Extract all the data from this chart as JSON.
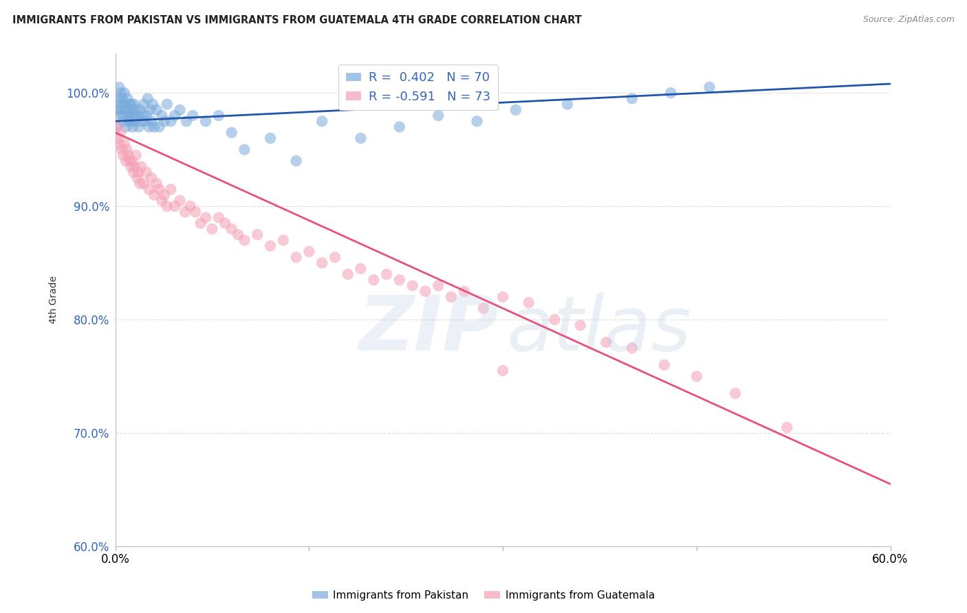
{
  "title": "IMMIGRANTS FROM PAKISTAN VS IMMIGRANTS FROM GUATEMALA 4TH GRADE CORRELATION CHART",
  "source": "Source: ZipAtlas.com",
  "ylabel": "4th Grade",
  "xlim": [
    0.0,
    60.0
  ],
  "ylim": [
    60.0,
    103.5
  ],
  "yticks": [
    60.0,
    70.0,
    80.0,
    90.0,
    100.0
  ],
  "ytick_labels": [
    "60.0%",
    "70.0%",
    "80.0%",
    "90.0%",
    "100.0%"
  ],
  "pakistan_color": "#7aabdc",
  "guatemala_color": "#f4a0b5",
  "pakistan_line_color": "#2255aa",
  "guatemala_line_color": "#e8507a",
  "background_color": "#ffffff",
  "grid_color": "#cccccc",
  "pakistan_scatter_x": [
    0.1,
    0.15,
    0.2,
    0.25,
    0.3,
    0.35,
    0.4,
    0.45,
    0.5,
    0.55,
    0.6,
    0.65,
    0.7,
    0.75,
    0.8,
    0.85,
    0.9,
    0.95,
    1.0,
    1.05,
    1.1,
    1.15,
    1.2,
    1.25,
    1.3,
    1.35,
    1.4,
    1.45,
    1.5,
    1.6,
    1.7,
    1.8,
    1.9,
    2.0,
    2.1,
    2.2,
    2.3,
    2.4,
    2.5,
    2.6,
    2.7,
    2.8,
    2.9,
    3.0,
    3.2,
    3.4,
    3.6,
    3.8,
    4.0,
    4.3,
    4.6,
    5.0,
    5.5,
    6.0,
    7.0,
    8.0,
    9.0,
    10.0,
    12.0,
    14.0,
    16.0,
    19.0,
    22.0,
    25.0,
    28.0,
    31.0,
    35.0,
    40.0,
    43.0,
    46.0
  ],
  "pakistan_scatter_y": [
    98.5,
    97.0,
    99.5,
    98.0,
    100.5,
    99.0,
    98.5,
    100.0,
    99.5,
    98.0,
    99.0,
    97.5,
    100.0,
    98.5,
    99.0,
    97.0,
    98.5,
    99.5,
    98.0,
    97.5,
    99.0,
    98.0,
    97.5,
    99.0,
    98.5,
    97.0,
    98.0,
    99.0,
    97.5,
    98.5,
    98.0,
    97.0,
    98.5,
    97.5,
    98.0,
    99.0,
    97.5,
    98.0,
    99.5,
    97.0,
    98.5,
    97.5,
    99.0,
    97.0,
    98.5,
    97.0,
    98.0,
    97.5,
    99.0,
    97.5,
    98.0,
    98.5,
    97.5,
    98.0,
    97.5,
    98.0,
    96.5,
    95.0,
    96.0,
    94.0,
    97.5,
    96.0,
    97.0,
    98.0,
    97.5,
    98.5,
    99.0,
    99.5,
    100.0,
    100.5
  ],
  "guatemala_scatter_x": [
    0.1,
    0.2,
    0.3,
    0.4,
    0.5,
    0.6,
    0.7,
    0.8,
    0.9,
    1.0,
    1.1,
    1.2,
    1.3,
    1.4,
    1.5,
    1.6,
    1.7,
    1.8,
    1.9,
    2.0,
    2.2,
    2.4,
    2.6,
    2.8,
    3.0,
    3.2,
    3.4,
    3.6,
    3.8,
    4.0,
    4.3,
    4.6,
    5.0,
    5.4,
    5.8,
    6.2,
    6.6,
    7.0,
    7.5,
    8.0,
    8.5,
    9.0,
    9.5,
    10.0,
    11.0,
    12.0,
    13.0,
    14.0,
    15.0,
    16.0,
    17.0,
    18.0,
    19.0,
    20.0,
    21.0,
    22.0,
    23.0,
    24.0,
    25.0,
    26.0,
    27.0,
    28.5,
    30.0,
    32.0,
    34.0,
    36.0,
    38.0,
    40.0,
    42.5,
    45.0,
    48.0,
    52.0,
    30.0
  ],
  "guatemala_scatter_y": [
    97.0,
    96.0,
    95.5,
    96.5,
    95.0,
    94.5,
    95.5,
    94.0,
    95.0,
    94.5,
    94.0,
    93.5,
    94.0,
    93.0,
    93.5,
    94.5,
    92.5,
    93.0,
    92.0,
    93.5,
    92.0,
    93.0,
    91.5,
    92.5,
    91.0,
    92.0,
    91.5,
    90.5,
    91.0,
    90.0,
    91.5,
    90.0,
    90.5,
    89.5,
    90.0,
    89.5,
    88.5,
    89.0,
    88.0,
    89.0,
    88.5,
    88.0,
    87.5,
    87.0,
    87.5,
    86.5,
    87.0,
    85.5,
    86.0,
    85.0,
    85.5,
    84.0,
    84.5,
    83.5,
    84.0,
    83.5,
    83.0,
    82.5,
    83.0,
    82.0,
    82.5,
    81.0,
    82.0,
    81.5,
    80.0,
    79.5,
    78.0,
    77.5,
    76.0,
    75.0,
    73.5,
    70.5,
    75.5
  ],
  "pak_line_x0": 0.0,
  "pak_line_x1": 60.0,
  "pak_line_y0": 97.5,
  "pak_line_y1": 100.8,
  "guat_line_x0": 0.0,
  "guat_line_x1": 60.0,
  "guat_line_y0": 96.5,
  "guat_line_y1": 65.5
}
